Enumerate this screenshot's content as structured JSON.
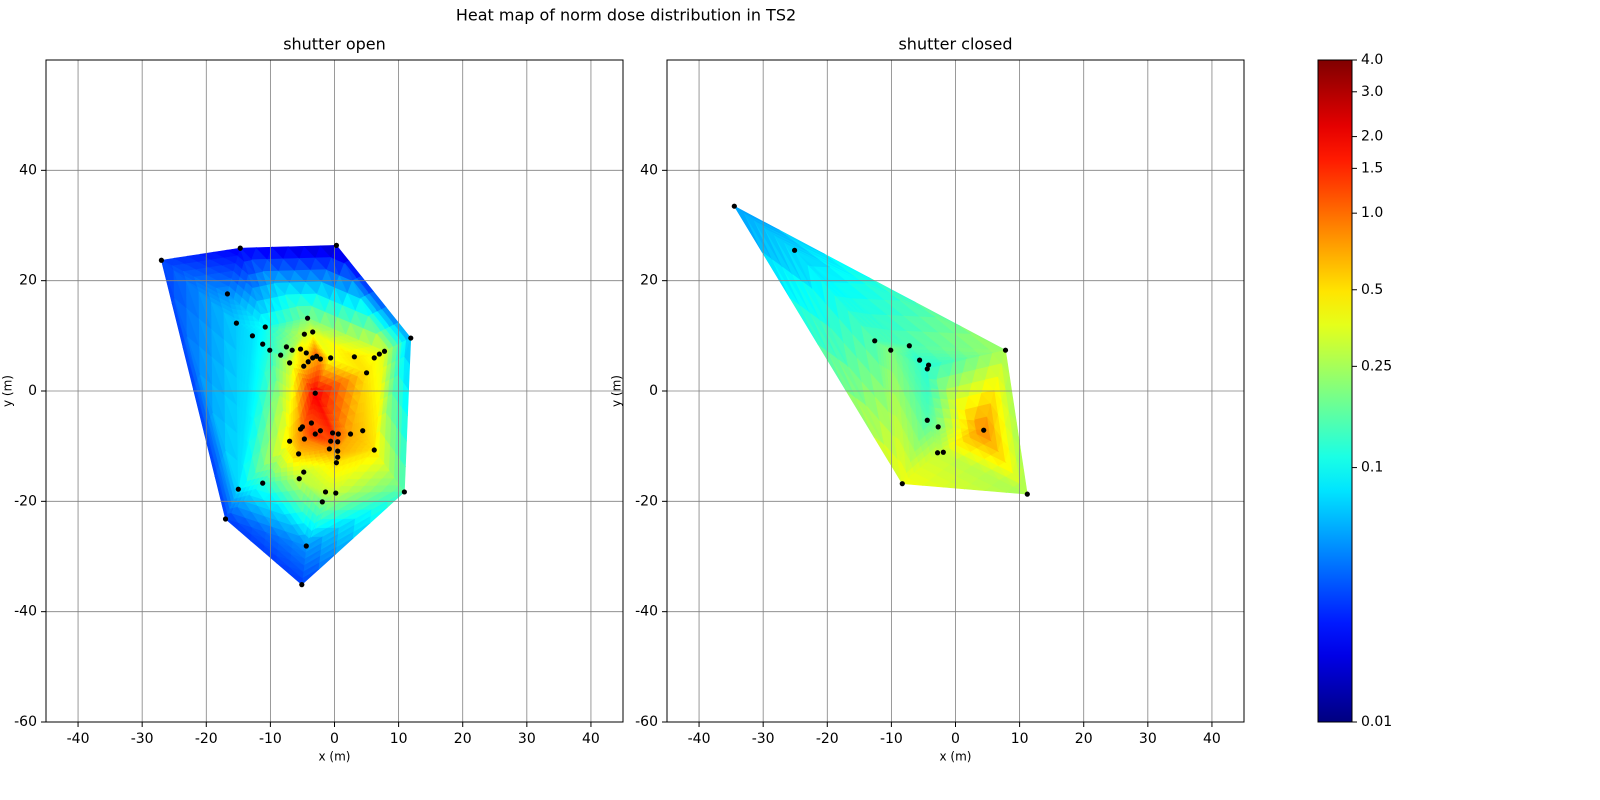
{
  "title": "Heat map of norm dose distribution in TS2",
  "colorbar": {
    "scale": "log",
    "colormap": "jet",
    "lim": [
      0.01,
      4.0
    ],
    "ticks": [
      {
        "value": 4.0,
        "label": "4.0"
      },
      {
        "value": 3.0,
        "label": "3.0"
      },
      {
        "value": 2.0,
        "label": "2.0"
      },
      {
        "value": 1.5,
        "label": "1.5"
      },
      {
        "value": 1.0,
        "label": "1.0"
      },
      0.5,
      0.25,
      0.1,
      0.01
    ]
  },
  "chart_data": [
    {
      "type": "scatter",
      "title": "shutter open",
      "xlabel": "x (m)",
      "ylabel": "y (m)",
      "xlim": [
        -45,
        45
      ],
      "xticks": [
        -40,
        -30,
        -20,
        -10,
        0,
        10,
        20,
        30,
        40
      ],
      "ylim": [
        -60,
        60
      ],
      "yticks": [
        -60,
        -40,
        -20,
        0,
        20,
        40
      ],
      "grid": true,
      "point_color": "#000000",
      "x": [
        -27,
        -14.7,
        0.3,
        11.9,
        -16.7,
        -15.3,
        -10.8,
        -12.8,
        -11.2,
        -10.1,
        -8.4,
        -7.5,
        -6.6,
        -7,
        -4.2,
        -4.7,
        -3.4,
        -5.3,
        -4.4,
        -3.4,
        -2.8,
        -2.2,
        -4.1,
        -4.8,
        -0.6,
        -3,
        3.1,
        6.2,
        7,
        7.8,
        5,
        -5.3,
        -5,
        -3.6,
        -7,
        -4.7,
        -3,
        -2.2,
        -0.3,
        0.6,
        2.5,
        4.4,
        -0.6,
        0.5,
        -0.8,
        0.5,
        0.5,
        0.3,
        6.2,
        -5.6,
        -4.8,
        -5.5,
        -11.2,
        -15,
        -1.4,
        0.2,
        10.9,
        -1.9,
        -17,
        -4.4,
        -5.1
      ],
      "y": [
        23.7,
        25.9,
        26.4,
        9.6,
        17.6,
        12.3,
        11.6,
        10,
        8.5,
        7.4,
        6.5,
        8,
        7.4,
        5.1,
        13.2,
        10.3,
        10.7,
        7.6,
        6.9,
        6,
        6.3,
        5.8,
        5.3,
        4.5,
        6,
        -0.4,
        6.2,
        6,
        6.7,
        7.2,
        3.3,
        -6.9,
        -6.5,
        -5.8,
        -9.1,
        -8.7,
        -7.8,
        -7.2,
        -7.6,
        -7.8,
        -7.8,
        -7.2,
        -9.1,
        -9.2,
        -10.5,
        -10.9,
        -12,
        -13,
        -10.7,
        -11.4,
        -14.7,
        -15.9,
        -16.7,
        -17.8,
        -18.3,
        -18.5,
        -18.3,
        -20.1,
        -23.2,
        -28.1,
        -35.1
      ],
      "values": [
        0.03,
        0.02,
        0.015,
        0.06,
        0.05,
        0.07,
        0.1,
        0.08,
        0.1,
        0.12,
        0.15,
        0.2,
        0.25,
        0.3,
        0.2,
        0.3,
        0.35,
        0.5,
        0.5,
        1.0,
        1.2,
        0.8,
        0.6,
        0.6,
        0.4,
        2.0,
        0.5,
        0.4,
        0.4,
        0.35,
        0.5,
        0.8,
        1.0,
        1.2,
        0.5,
        0.9,
        1.5,
        1.2,
        1.5,
        1.0,
        0.7,
        0.6,
        1.2,
        1.0,
        0.8,
        0.7,
        0.6,
        0.5,
        0.5,
        0.6,
        0.3,
        0.3,
        0.12,
        0.08,
        0.3,
        0.3,
        0.15,
        0.2,
        0.03,
        0.05,
        0.03
      ]
    },
    {
      "type": "scatter",
      "title": "shutter closed",
      "xlabel": "x (m)",
      "ylabel": "y (m)",
      "xlim": [
        -45,
        45
      ],
      "xticks": [
        -40,
        -30,
        -20,
        -10,
        0,
        10,
        20,
        30,
        40
      ],
      "ylim": [
        -60,
        60
      ],
      "yticks": [
        -60,
        -40,
        -20,
        0,
        20,
        40
      ],
      "grid": true,
      "point_color": "#000000",
      "x": [
        -34.5,
        -25.1,
        -12.6,
        -10.1,
        -7.2,
        -5.6,
        -4.2,
        -4.4,
        7.8,
        -4.4,
        -2.7,
        4.4,
        -2.8,
        -1.9,
        -8.3,
        11.2
      ],
      "y": [
        33.5,
        25.5,
        9.1,
        7.4,
        8.2,
        5.6,
        4.7,
        4,
        7.4,
        -5.3,
        -6.5,
        -7.1,
        -11.2,
        -11.1,
        -16.8,
        -18.7
      ],
      "values": [
        0.05,
        0.07,
        0.15,
        0.2,
        0.15,
        0.12,
        0.12,
        0.12,
        0.25,
        0.15,
        0.2,
        0.9,
        0.3,
        0.3,
        0.4,
        0.25
      ]
    }
  ]
}
